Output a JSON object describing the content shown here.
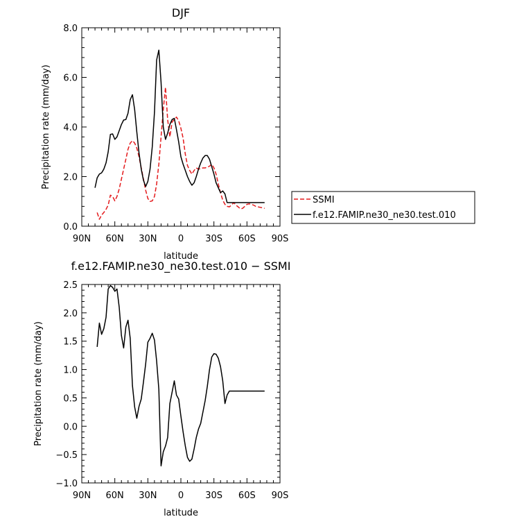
{
  "chart_data": [
    {
      "type": "line",
      "title": "DJF",
      "xlabel": "latitude",
      "ylabel": "Precipitation rate (mm/day)",
      "xlim": [
        -90,
        90
      ],
      "ylim": [
        0,
        8
      ],
      "x_ticks": [
        -90,
        -60,
        -30,
        0,
        30,
        60,
        90
      ],
      "x_tick_labels": [
        "90N",
        "60N",
        "30N",
        "0",
        "30S",
        "60S",
        "90S"
      ],
      "y_ticks": [
        0,
        2,
        4,
        6,
        8
      ],
      "y_tick_labels": [
        "0.0",
        "2.0",
        "4.0",
        "6.0",
        "8.0"
      ],
      "legend_position": "right",
      "grid": false,
      "series": [
        {
          "name": "SSMI",
          "color": "#e41a1c",
          "dash": "dashed",
          "x": [
            -76,
            -74,
            -72,
            -70,
            -68,
            -66,
            -64,
            -62,
            -60,
            -58,
            -56,
            -54,
            -52,
            -50,
            -48,
            -46,
            -44,
            -42,
            -40,
            -38,
            -36,
            -34,
            -32,
            -30,
            -28,
            -26,
            -24,
            -22,
            -20,
            -18,
            -16,
            -14,
            -12,
            -10,
            -8,
            -6,
            -4,
            -2,
            0,
            2,
            4,
            6,
            8,
            10,
            12,
            14,
            16,
            18,
            20,
            22,
            24,
            26,
            28,
            30,
            32,
            34,
            36,
            38,
            40,
            42,
            44,
            46,
            48,
            50,
            52,
            54,
            56,
            58,
            60,
            62,
            64,
            66,
            68,
            70,
            72,
            74,
            76
          ],
          "y": [
            0.55,
            0.28,
            0.45,
            0.55,
            0.68,
            0.85,
            1.25,
            1.2,
            1.02,
            1.2,
            1.5,
            1.9,
            2.3,
            2.7,
            3.1,
            3.35,
            3.45,
            3.35,
            3.15,
            2.8,
            2.35,
            1.9,
            1.45,
            1.12,
            1.0,
            1.02,
            1.2,
            1.7,
            2.5,
            3.6,
            4.7,
            5.6,
            4.3,
            3.6,
            4.2,
            4.3,
            4.4,
            4.25,
            3.95,
            3.55,
            2.9,
            2.45,
            2.25,
            2.1,
            2.25,
            2.35,
            2.3,
            2.32,
            2.35,
            2.35,
            2.38,
            2.42,
            2.5,
            2.35,
            2.1,
            1.7,
            1.35,
            1.05,
            0.88,
            0.8,
            0.78,
            0.85,
            0.95,
            0.85,
            0.78,
            0.7,
            0.72,
            0.8,
            0.88,
            0.9,
            0.88,
            0.85,
            0.8,
            0.78,
            0.76,
            0.74,
            0.72
          ]
        },
        {
          "name": "f.e12.FAMIP.ne30_ne30.test.010",
          "color": "#000000",
          "dash": "solid",
          "x": [
            -78,
            -76,
            -74,
            -72,
            -70,
            -68,
            -66,
            -64,
            -62,
            -60,
            -58,
            -56,
            -54,
            -52,
            -50,
            -48,
            -46,
            -44,
            -42,
            -40,
            -38,
            -36,
            -34,
            -32,
            -30,
            -28,
            -26,
            -24,
            -22,
            -20,
            -18,
            -16,
            -14,
            -12,
            -10,
            -8,
            -6,
            -4,
            -2,
            0,
            2,
            4,
            6,
            8,
            10,
            12,
            14,
            16,
            18,
            20,
            22,
            24,
            26,
            28,
            30,
            32,
            34,
            36,
            38,
            40,
            42,
            44,
            46,
            48,
            50,
            52,
            54,
            56,
            58,
            60,
            62,
            64,
            66,
            68,
            70,
            72,
            74,
            76
          ],
          "y": [
            1.55,
            1.95,
            2.1,
            2.15,
            2.3,
            2.55,
            3.0,
            3.7,
            3.72,
            3.5,
            3.6,
            3.85,
            4.1,
            4.28,
            4.3,
            4.55,
            5.1,
            5.3,
            4.7,
            3.8,
            2.95,
            2.3,
            1.85,
            1.6,
            1.8,
            2.3,
            3.2,
            4.6,
            6.7,
            7.1,
            5.8,
            4.0,
            3.5,
            3.75,
            4.1,
            4.3,
            4.35,
            3.9,
            3.4,
            2.8,
            2.5,
            2.25,
            2.0,
            1.8,
            1.65,
            1.75,
            2.0,
            2.3,
            2.55,
            2.75,
            2.85,
            2.85,
            2.7,
            2.4,
            2.1,
            1.75,
            1.55,
            1.35,
            1.42,
            1.3,
            0.95,
            0.95,
            0.95,
            0.95,
            0.95,
            0.95,
            0.95,
            0.95,
            0.95,
            0.95,
            0.95,
            0.95,
            0.95,
            0.95,
            0.95,
            0.95,
            0.95,
            0.95
          ]
        }
      ]
    },
    {
      "type": "line",
      "title": "f.e12.FAMIP.ne30_ne30.test.010 − SSMI",
      "xlabel": "latitude",
      "ylabel": "Precipitation rate (mm/day)",
      "xlim": [
        -90,
        90
      ],
      "ylim": [
        -1.0,
        2.5
      ],
      "x_ticks": [
        -90,
        -60,
        -30,
        0,
        30,
        60,
        90
      ],
      "x_tick_labels": [
        "90N",
        "60N",
        "30N",
        "0",
        "30S",
        "60S",
        "90S"
      ],
      "y_ticks": [
        -1.0,
        -0.5,
        0.0,
        0.5,
        1.0,
        1.5,
        2.0,
        2.5
      ],
      "y_tick_labels": [
        "−1.0",
        "−0.5",
        "0.0",
        "0.5",
        "1.0",
        "1.5",
        "2.0",
        "2.5"
      ],
      "grid": false,
      "series": [
        {
          "color": "#000000",
          "dash": "solid",
          "x": [
            -76,
            -74,
            -72,
            -70,
            -68,
            -66,
            -64,
            -62,
            -60,
            -58,
            -56,
            -54,
            -52,
            -50,
            -48,
            -46,
            -44,
            -42,
            -40,
            -38,
            -36,
            -34,
            -32,
            -30,
            -28,
            -26,
            -24,
            -22,
            -20,
            -18,
            -16,
            -14,
            -12,
            -10,
            -8,
            -6,
            -4,
            -2,
            0,
            2,
            4,
            6,
            8,
            10,
            12,
            14,
            16,
            18,
            20,
            22,
            24,
            26,
            28,
            30,
            32,
            34,
            36,
            38,
            40,
            42,
            44,
            46,
            48,
            50,
            52,
            54,
            56,
            58,
            60,
            62,
            64,
            66,
            68,
            70,
            72,
            74,
            76
          ],
          "y": [
            1.4,
            1.82,
            1.62,
            1.72,
            1.92,
            2.42,
            2.48,
            2.45,
            2.38,
            2.42,
            2.1,
            1.6,
            1.38,
            1.75,
            1.87,
            1.55,
            0.72,
            0.34,
            0.14,
            0.35,
            0.48,
            0.78,
            1.1,
            1.48,
            1.55,
            1.64,
            1.52,
            1.15,
            0.65,
            -0.7,
            -0.45,
            -0.35,
            -0.2,
            0.4,
            0.6,
            0.8,
            0.55,
            0.48,
            0.18,
            -0.1,
            -0.35,
            -0.55,
            -0.62,
            -0.58,
            -0.4,
            -0.2,
            -0.05,
            0.05,
            0.25,
            0.45,
            0.7,
            1.0,
            1.22,
            1.28,
            1.27,
            1.2,
            1.05,
            0.8,
            0.4,
            0.55,
            0.62,
            0.62,
            0.62,
            0.62,
            0.62,
            0.62,
            0.62,
            0.62,
            0.62,
            0.62,
            0.62,
            0.62,
            0.62,
            0.62,
            0.62,
            0.62,
            0.62
          ]
        }
      ]
    }
  ]
}
